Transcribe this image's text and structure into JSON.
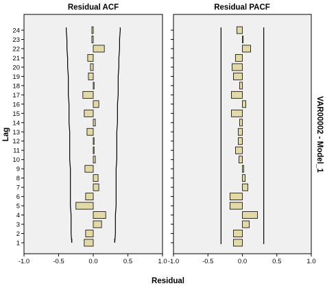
{
  "chart_data": [
    {
      "type": "bar",
      "orientation": "horizontal",
      "title": "Residual ACF",
      "xlabel": "Residual",
      "ylabel": "Lag",
      "xlim": [
        -1.0,
        1.0
      ],
      "x_ticks": [
        "-1.0",
        "-0.5",
        "0.0",
        "0.5",
        "1.0"
      ],
      "categories": [
        "1",
        "2",
        "3",
        "4",
        "5",
        "6",
        "7",
        "8",
        "9",
        "10",
        "11",
        "12",
        "13",
        "14",
        "15",
        "16",
        "17",
        "18",
        "19",
        "20",
        "21",
        "22",
        "23",
        "24"
      ],
      "values": [
        -0.13,
        -0.11,
        0.12,
        0.18,
        -0.25,
        -0.11,
        0.08,
        0.07,
        -0.12,
        0.03,
        0.01,
        0.01,
        -0.09,
        0.03,
        -0.13,
        0.08,
        -0.15,
        0.0,
        -0.07,
        -0.04,
        -0.08,
        0.16,
        -0.02,
        -0.02
      ],
      "confidence_limits": {
        "upper": [
          0.31,
          0.32,
          0.32,
          0.32,
          0.33,
          0.33,
          0.33,
          0.33,
          0.33,
          0.34,
          0.34,
          0.34,
          0.34,
          0.35,
          0.35,
          0.35,
          0.36,
          0.36,
          0.36,
          0.37,
          0.37,
          0.38,
          0.38,
          0.39
        ],
        "lower": [
          -0.31,
          -0.32,
          -0.32,
          -0.32,
          -0.33,
          -0.33,
          -0.33,
          -0.33,
          -0.33,
          -0.34,
          -0.34,
          -0.34,
          -0.34,
          -0.35,
          -0.35,
          -0.35,
          -0.36,
          -0.36,
          -0.36,
          -0.37,
          -0.37,
          -0.38,
          -0.38,
          -0.39
        ]
      },
      "grid": false
    },
    {
      "type": "bar",
      "orientation": "horizontal",
      "title": "Residual PACF",
      "xlabel": "Residual",
      "ylabel": "Lag",
      "xlim": [
        -1.0,
        1.0
      ],
      "x_ticks": [
        "-1.0",
        "-0.5",
        "0.0",
        "0.5",
        "1.0"
      ],
      "categories": [
        "1",
        "2",
        "3",
        "4",
        "5",
        "6",
        "7",
        "8",
        "9",
        "10",
        "11",
        "12",
        "13",
        "14",
        "15",
        "16",
        "17",
        "18",
        "19",
        "20",
        "21",
        "22",
        "23",
        "24"
      ],
      "values": [
        -0.13,
        -0.13,
        0.1,
        0.22,
        -0.18,
        -0.18,
        0.08,
        0.04,
        0.02,
        -0.05,
        -0.1,
        -0.06,
        -0.06,
        -0.04,
        -0.16,
        0.05,
        -0.16,
        -0.04,
        -0.13,
        -0.15,
        -0.1,
        0.12,
        0.0,
        -0.08
      ],
      "confidence_limits": {
        "upper": 0.31,
        "lower": -0.31
      },
      "grid": false
    }
  ],
  "side_label": "VAR00002 - Model_1",
  "colors": {
    "bar_fill": "#e3d9a8",
    "bar_stroke": "#000000",
    "panel_bg": "#f0f0f0",
    "frame": "#000000"
  }
}
